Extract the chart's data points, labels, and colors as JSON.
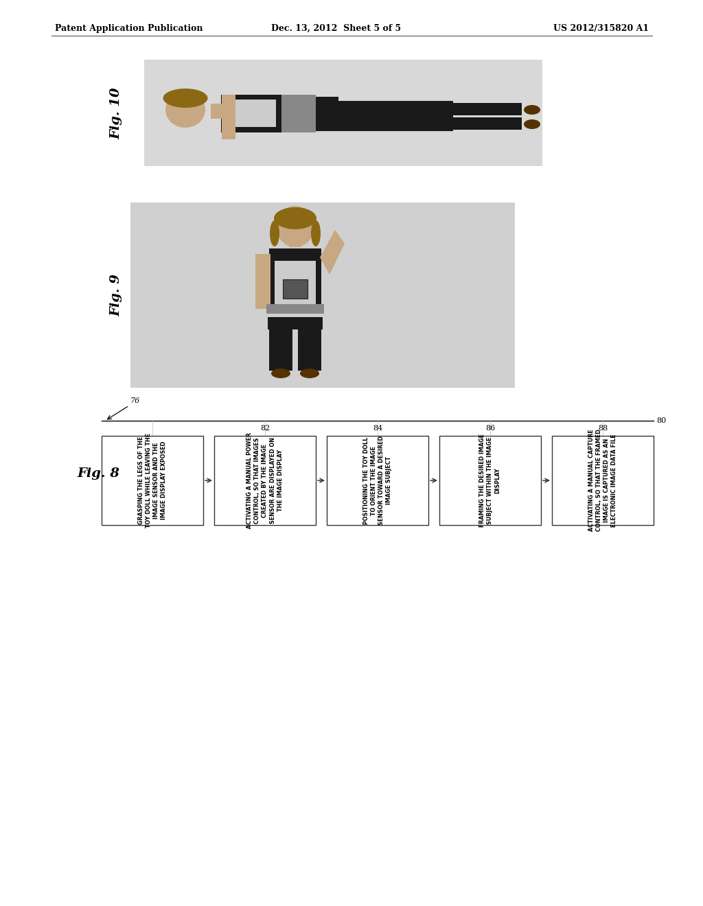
{
  "header_left": "Patent Application Publication",
  "header_mid": "Dec. 13, 2012  Sheet 5 of 5",
  "header_right": "US 2012/315820 A1",
  "fig10_label": "Fig. 10",
  "fig9_label": "Fig. 9",
  "fig8_label": "Fig. 8",
  "flow_label_80": "80",
  "flow_label_76": "76",
  "flow_label_82": "82",
  "flow_label_84": "84",
  "flow_label_86": "86",
  "flow_label_88": "88",
  "box1_text": "GRASPING THE LEGS OF THE\nTOY DOLL WHILE LEAVING THE\nIMAGE SENSOR AND THE\nIMAGE DISPLAY EXPOSED",
  "box2_text": "ACTIVATING A MANUAL POWER\nCONTROL, SO THAT IMAGES\nCREATED BY THE IMAGE\nSENSOR ARE DISPLAYED ON\nTHE IMAGE DISPLAY",
  "box3_text": "POSITIONING THE TOY DOLL\nTO ORIENT THE IMAGE\nSENSOR TOWARD A DESIRED\nIMAGE SUBJECT",
  "box4_text": "FRAMING THE DESIRED IMAGE\nSUBJECT WITHIN THE IMAGE\nDISPLAY",
  "box5_text": "ACTIVATING A MANUAL CAPTURE\nCONTROL, SO THAT THE FRAMED\nIMAGE IS CAPTURED AS AN\nELECTRONIC IMAGE DATA FILE",
  "bg_color": "#ffffff",
  "box_edge_color": "#000000",
  "text_color": "#000000",
  "line_color": "#888888",
  "doll_skin": "#c8a882",
  "doll_hair": "#8b6914",
  "doll_dark": "#1a1a1a",
  "doll_belt": "#888888",
  "doll_top": "#cccccc",
  "doll_shoe": "#553300"
}
